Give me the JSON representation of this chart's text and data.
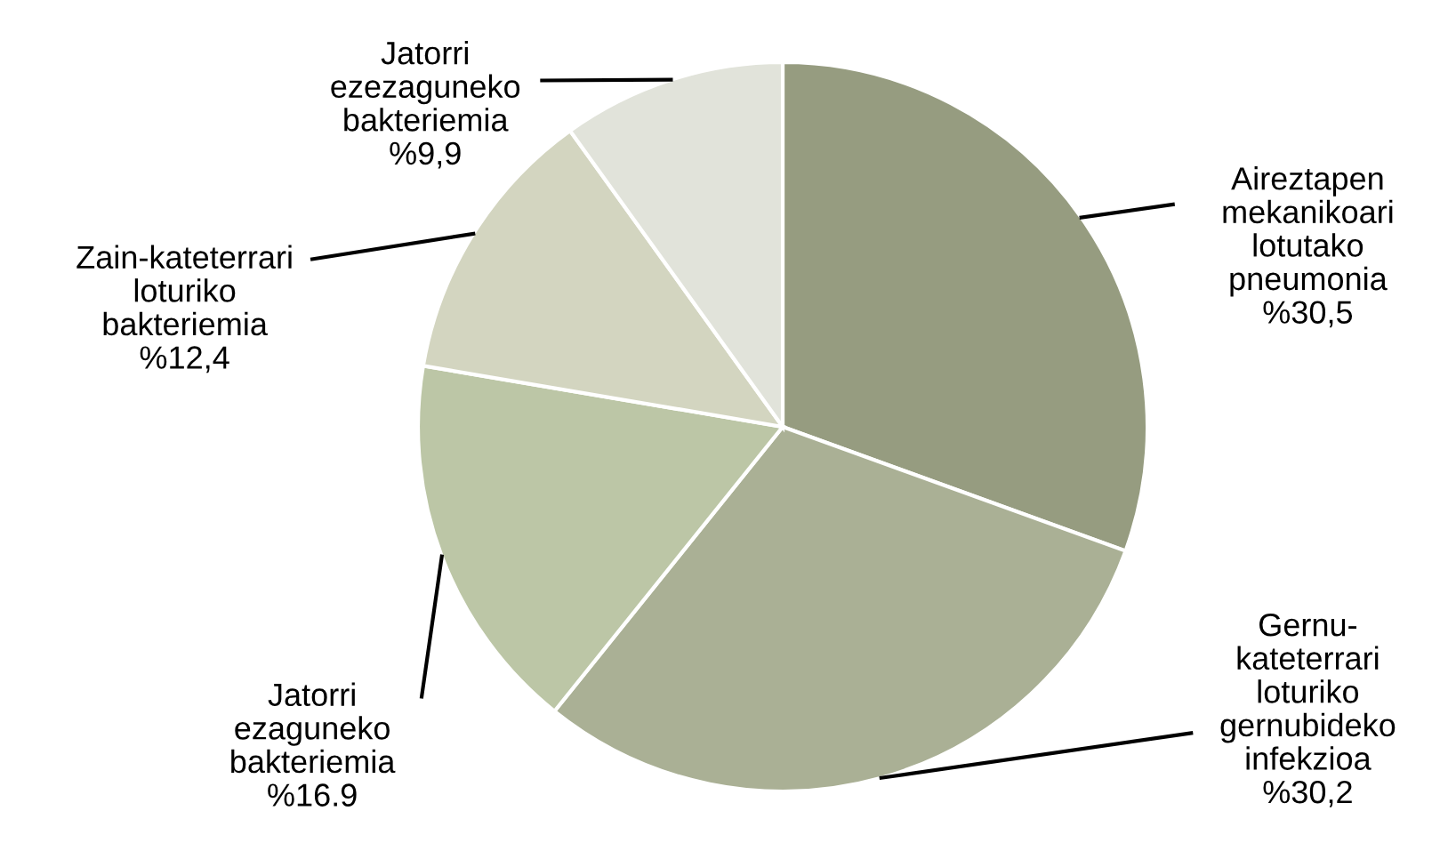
{
  "chart_data": {
    "type": "pie",
    "categories": [
      "Aireztapen\nmekanikoari\nlotutako\npneumonia",
      "Gernu-\nkateterrari\nloturiko\ngernubideko\ninfekzioa",
      "Jatorri\nezaguneko\nbakteriemia",
      "Zain-kateterrari\nloturiko\nbakteriemia",
      "Jatorri\nezezaguneko\nbakteriemia"
    ],
    "values": [
      30.5,
      30.2,
      16.9,
      12.4,
      9.9
    ],
    "value_labels": [
      "%30,5",
      "%30,2",
      "%16.9",
      "%12,4",
      "%9,9"
    ],
    "colors": [
      "#969c80",
      "#aab095",
      "#bcc6a6",
      "#d3d5c0",
      "#e1e3da"
    ]
  }
}
